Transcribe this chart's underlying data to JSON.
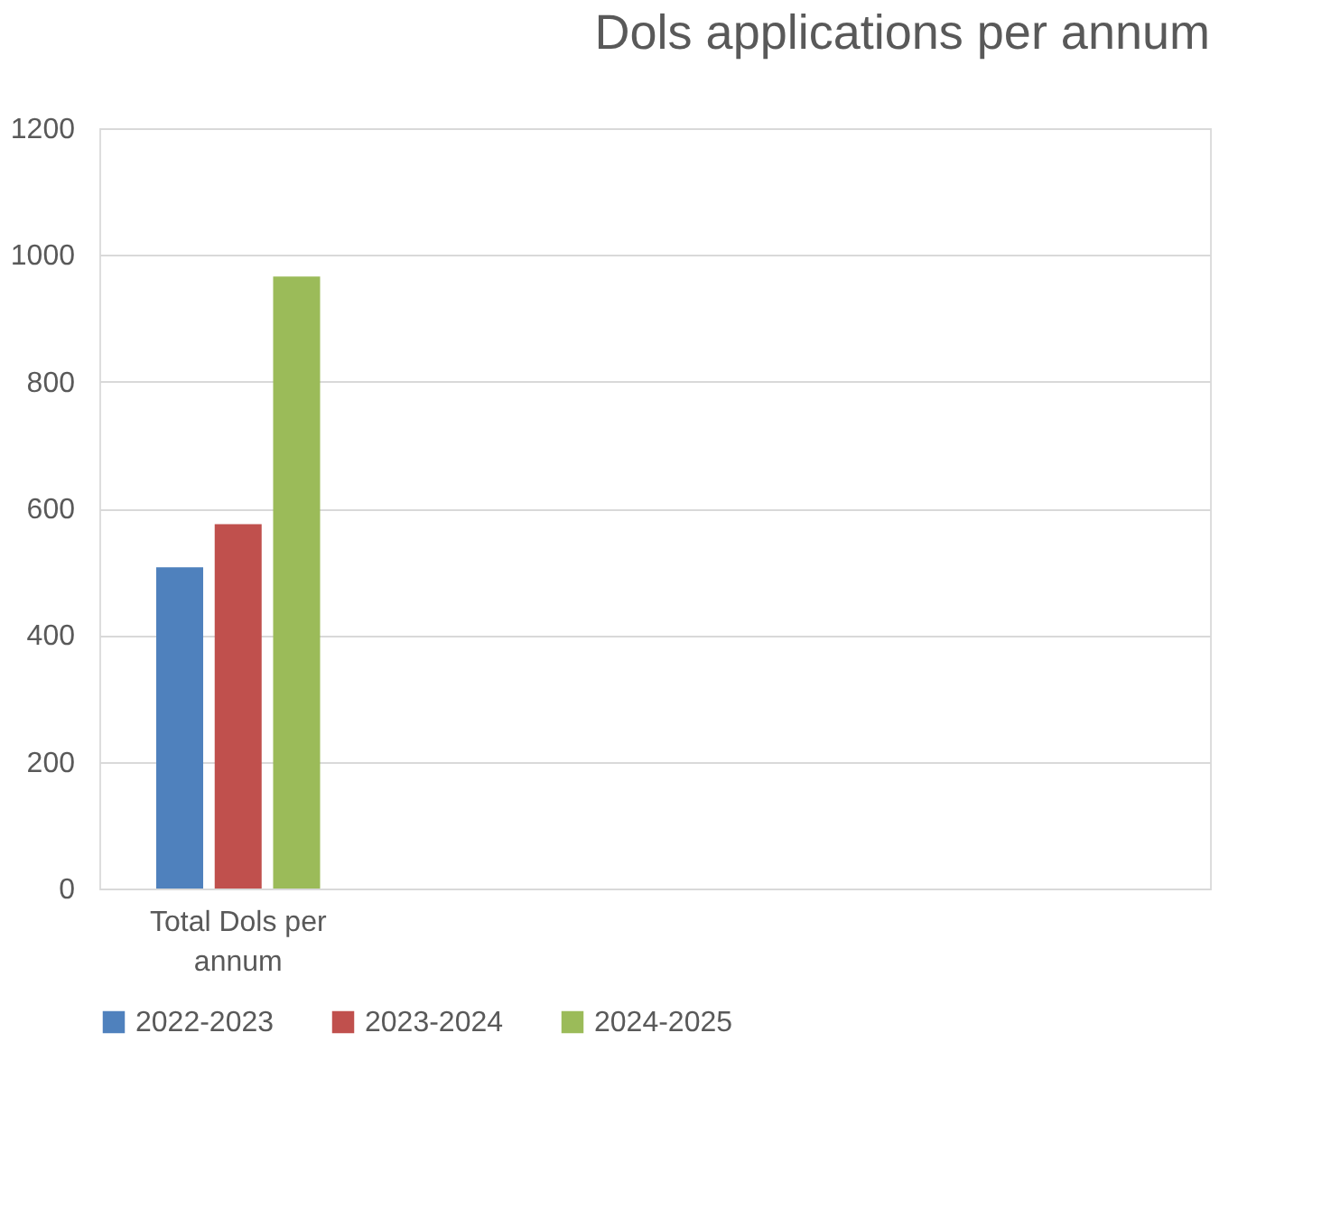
{
  "chart_data": {
    "type": "bar",
    "title": "Dols applications per annum",
    "categories": [
      "Total Dols per annum",
      null,
      null,
      null
    ],
    "series": [
      {
        "name": "2022-2023",
        "color": "#4f81bd",
        "values": [
          507,
          null,
          null,
          null
        ]
      },
      {
        "name": "2023-2024",
        "color": "#c0504d",
        "values": [
          575,
          null,
          null,
          null
        ]
      },
      {
        "name": "2024-2025",
        "color": "#9bbb59",
        "values": [
          966,
          null,
          null,
          null
        ]
      }
    ],
    "ylim": [
      0,
      1200
    ],
    "yticks": [
      0,
      200,
      400,
      600,
      800,
      1000,
      1200
    ],
    "grid": "y",
    "legend": "bottom"
  }
}
